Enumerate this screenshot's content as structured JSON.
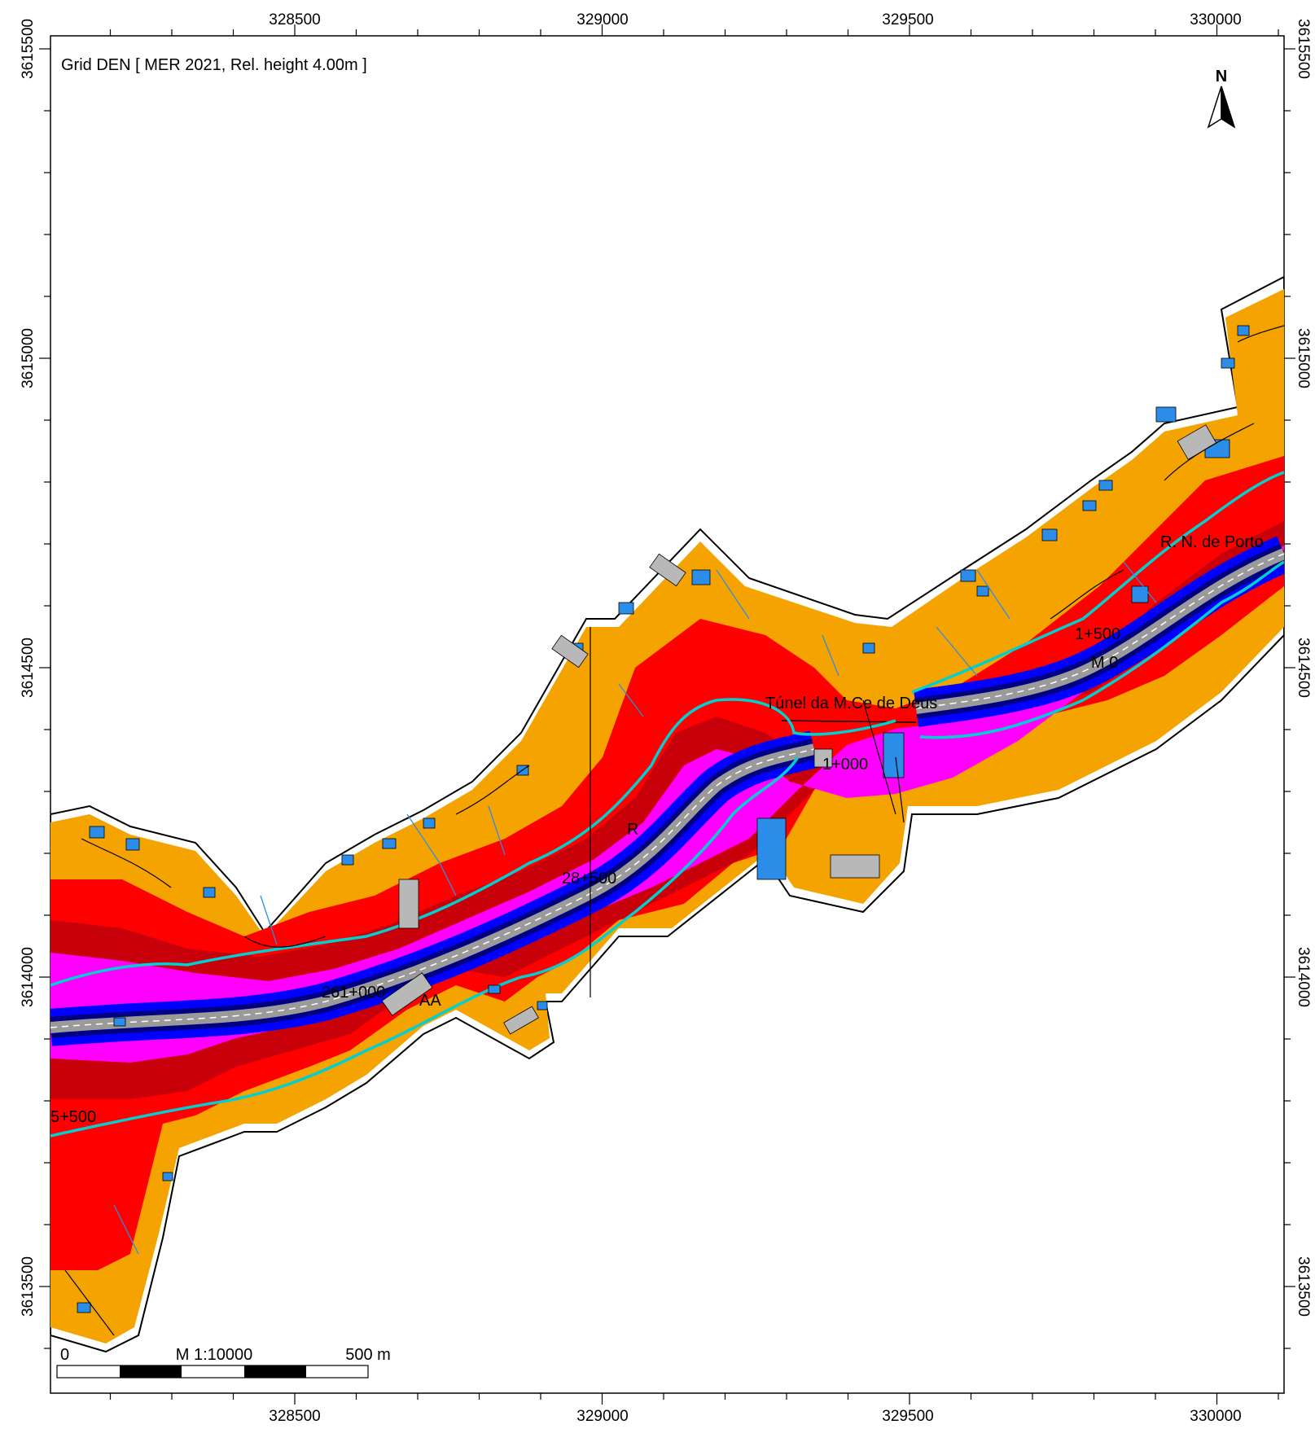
{
  "map": {
    "title": "Grid DEN  [ MER 2021, Rel. height  4.00m ]",
    "north_label": "N",
    "x_ticks": [
      "328500",
      "329000",
      "329500",
      "330000"
    ],
    "y_ticks": [
      "3615500",
      "3615000",
      "3614500",
      "3614000",
      "3613500"
    ],
    "scale": {
      "start_label": "0",
      "ratio_label": "M 1:10000",
      "end_label": "500 m"
    },
    "labels": {
      "tunnel": "Túnel da M.Ce de Deus",
      "road_north": "R. N. de Porto",
      "km_5500": "5+500",
      "km_261000": "261+000",
      "km_aa": "AA",
      "km_28500": "28+500",
      "km_r": "R",
      "km_1000": "1+000",
      "km_mid": "M.0",
      "km_1500": "1+500"
    },
    "colors": {
      "orange": "#f5a300",
      "red": "#ff0000",
      "darkred": "#c8000a",
      "magenta": "#ff00ff",
      "purple": "#9b00c8",
      "blue": "#0000ff",
      "navy": "#000080",
      "cyan": "#00d0d0",
      "building": "#2b8de8"
    }
  }
}
